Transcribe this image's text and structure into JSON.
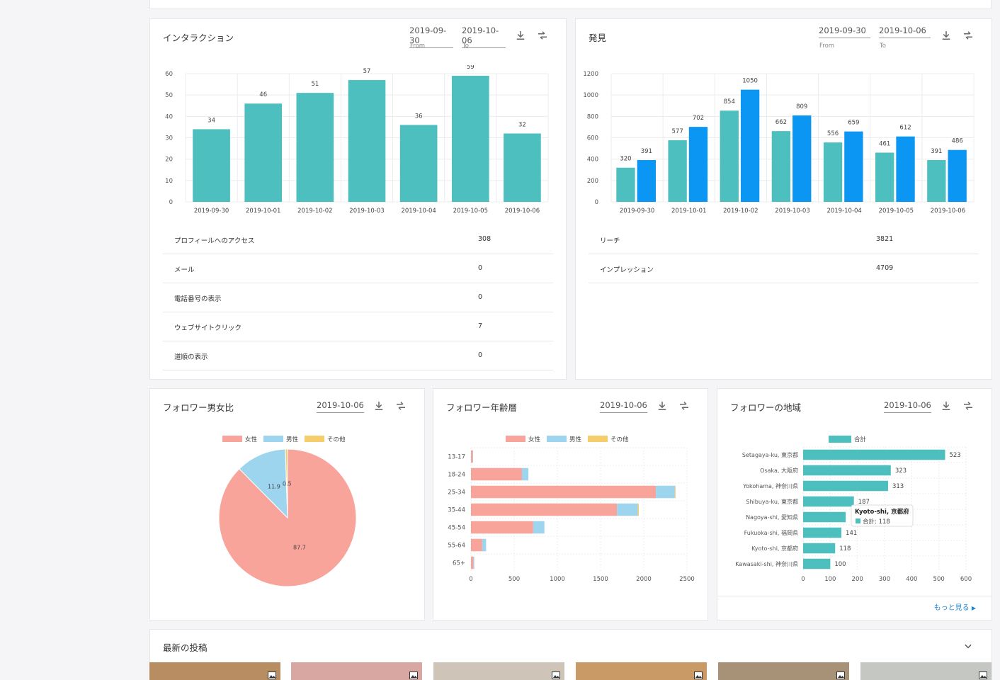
{
  "interaction": {
    "title": "インタラクション",
    "from_value": "2019-09-30",
    "to_value": "2019-10-06",
    "from_label": "From",
    "to_label": "To",
    "chart_data": {
      "type": "bar",
      "categories": [
        "2019-09-30",
        "2019-10-01",
        "2019-10-02",
        "2019-10-03",
        "2019-10-04",
        "2019-10-05",
        "2019-10-06"
      ],
      "values": [
        34,
        46,
        51,
        57,
        36,
        59,
        32
      ],
      "yticks": [
        0,
        10,
        20,
        30,
        40,
        50,
        60
      ],
      "ylim": [
        0,
        60
      ],
      "color": "#4dbfbf"
    },
    "rows": [
      {
        "label": "プロフィールへのアクセス",
        "value": "308"
      },
      {
        "label": "メール",
        "value": "0"
      },
      {
        "label": "電話番号の表示",
        "value": "0"
      },
      {
        "label": "ウェブサイトクリック",
        "value": "7"
      },
      {
        "label": "道順の表示",
        "value": "0"
      }
    ]
  },
  "discovery": {
    "title": "発見",
    "from_value": "2019-09-30",
    "to_value": "2019-10-06",
    "from_label": "From",
    "to_label": "To",
    "chart_data": {
      "type": "bar",
      "categories": [
        "2019-09-30",
        "2019-10-01",
        "2019-10-02",
        "2019-10-03",
        "2019-10-04",
        "2019-10-05",
        "2019-10-06"
      ],
      "series": [
        {
          "values": [
            320,
            577,
            854,
            662,
            556,
            461,
            391
          ],
          "color": "#4dbfbf"
        },
        {
          "values": [
            391,
            702,
            1050,
            809,
            659,
            612,
            486
          ],
          "color": "#0a96f2"
        }
      ],
      "yticks": [
        0,
        200,
        400,
        600,
        800,
        1000,
        1200
      ],
      "ylim": [
        0,
        1200
      ]
    },
    "rows": [
      {
        "label": "リーチ",
        "value": "3821"
      },
      {
        "label": "インプレッション",
        "value": "4709"
      }
    ]
  },
  "gender": {
    "title": "フォロワー男女比",
    "date_value": "2019-10-06",
    "chart_data": {
      "type": "pie",
      "legend": [
        {
          "name": "女性",
          "color": "#f8a49b"
        },
        {
          "name": "男性",
          "color": "#9ed5ee"
        },
        {
          "name": "その他",
          "color": "#f5cd6b"
        }
      ],
      "values": [
        87.7,
        11.9,
        0.5
      ],
      "labels": [
        "87.7",
        "11.9",
        "0.5"
      ]
    }
  },
  "age": {
    "title": "フォロワー年齢層",
    "date_value": "2019-10-06",
    "chart_data": {
      "type": "bar",
      "orientation": "horizontal",
      "stacked": true,
      "categories": [
        "13-17",
        "18-24",
        "25-34",
        "35-44",
        "45-54",
        "55-64",
        "65+"
      ],
      "series": [
        {
          "name": "女性",
          "values": [
            20,
            590,
            2140,
            1690,
            720,
            130,
            30
          ],
          "color": "#f8a49b"
        },
        {
          "name": "男性",
          "values": [
            5,
            75,
            220,
            240,
            130,
            45,
            8
          ],
          "color": "#9ed5ee"
        },
        {
          "name": "その他",
          "values": [
            0,
            0,
            8,
            12,
            0,
            0,
            0
          ],
          "color": "#f5cd6b"
        }
      ],
      "xticks": [
        0,
        500,
        1000,
        1500,
        2000,
        2500
      ],
      "xlim": [
        0,
        2500
      ]
    }
  },
  "region": {
    "title": "フォロワーの地域",
    "date_value": "2019-10-06",
    "more_link": "もっと見る",
    "chart_data": {
      "type": "bar",
      "orientation": "horizontal",
      "legend": "合計",
      "categories": [
        "Setagaya-ku, 東京都",
        "Osaka, 大阪府",
        "Yokohama, 神奈川県",
        "Shibuya-ku, 東京都",
        "Nagoya-shi, 愛知県",
        "Fukuoka-shi, 福岡県",
        "Kyoto-shi, 京都府",
        "Kawasaki-shi, 神奈川県"
      ],
      "values": [
        523,
        323,
        313,
        187,
        157,
        141,
        118,
        100
      ],
      "labels": [
        "523",
        "323",
        "313",
        "187",
        "",
        "141",
        "118",
        "100"
      ],
      "xticks": [
        0,
        100,
        200,
        300,
        400,
        500,
        600
      ],
      "xlim": [
        0,
        600
      ],
      "color": "#4dbfbf"
    },
    "tooltip": {
      "title": "Kyoto-shi, 京都府",
      "text": "合計: 118"
    }
  },
  "latest_posts": {
    "title": "最新の投稿",
    "thumbs": [
      {
        "color": "#b98d62",
        "icon": "gallery-icon"
      },
      {
        "color": "#d9a7a2",
        "icon": "image-icon"
      },
      {
        "color": "#cfc4b8",
        "icon": "image-icon"
      },
      {
        "color": "#c99a66",
        "icon": "image-icon"
      },
      {
        "color": "#a89277",
        "icon": "image-icon"
      },
      {
        "color": "#c5c8c2",
        "icon": "image-icon"
      }
    ]
  }
}
